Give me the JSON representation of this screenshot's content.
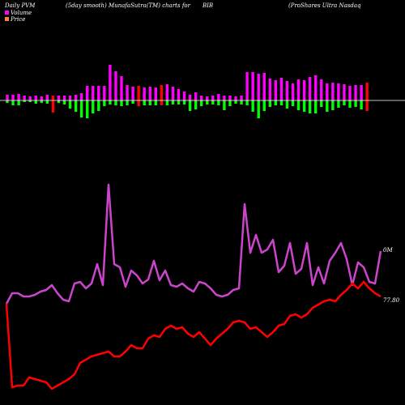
{
  "header": {
    "left": "Daily PVM",
    "center": "(5day smooth) MunafaSutra(TM) charts for",
    "symbol": "BIB",
    "right": "(ProShares Ultra  Nasdaq"
  },
  "legend": {
    "volume_label": "Volume",
    "price_label": "Price",
    "volume_color": "#ff00ff",
    "price_color": "#ff8040"
  },
  "colors": {
    "background": "#000000",
    "bar_magenta": "#ff00ff",
    "bar_green": "#00ff00",
    "bar_red": "#ff0000",
    "pvm_line": "#cc44cc",
    "price_line": "#ff0000",
    "baseline": "#ffffff"
  },
  "chart_data": {
    "type": "line",
    "x": [
      0,
      1,
      2,
      3,
      4,
      5,
      6,
      7,
      8,
      9,
      10,
      11,
      12,
      13,
      14,
      15,
      16,
      17,
      18,
      19,
      20,
      21,
      22,
      23,
      24,
      25,
      26,
      27,
      28,
      29,
      30,
      31,
      32,
      33,
      34,
      35,
      36,
      37,
      38,
      39,
      40,
      41,
      42,
      43,
      44,
      45,
      46,
      47,
      48,
      49,
      50,
      51,
      52,
      53,
      54,
      55,
      56,
      57,
      58,
      59,
      60,
      61,
      62,
      63,
      64,
      65,
      66
    ],
    "series": [
      {
        "values": [
          376,
          362,
          360,
          362,
          366,
          366,
          364,
          362,
          358,
          356,
          358,
          360,
          356,
          350,
          352,
          354,
          354,
          350,
          348,
          348,
          346,
          344,
          346,
          342,
          330,
          328,
          320,
          324,
          326,
          320,
          320,
          318,
          324,
          330,
          318,
          320,
          320,
          316,
          314,
          318,
          320,
          316,
          310,
          314,
          316,
          318,
          322,
          318,
          321,
          318,
          314,
          312,
          314,
          308,
          302,
          302,
          298,
          302,
          300,
          304,
          300,
          300,
          290,
          286,
          290,
          300,
          302
        ]
      },
      {
        "name": "Price",
        "values": [
          15,
          20,
          84,
          86,
          86,
          86,
          85,
          84,
          84,
          84,
          83,
          83,
          82,
          82,
          82,
          83,
          83,
          84,
          84,
          84,
          85,
          85,
          86,
          86,
          86,
          85,
          85,
          86,
          86,
          86,
          86,
          86,
          85,
          85,
          86,
          86,
          86,
          86,
          86,
          87,
          88,
          88,
          88,
          89,
          89,
          89,
          90,
          91,
          92,
          93,
          92,
          92,
          93,
          94,
          94,
          92,
          93,
          94,
          95,
          96,
          96,
          96,
          95,
          95,
          94,
          94,
          93
        ]
      }
    ],
    "right_labels": {
      "pvm": "0M",
      "price": "77.80"
    },
    "volume_bars": [
      {
        "up": 7,
        "down": 3,
        "c": "m"
      },
      {
        "up": 7,
        "down": 6,
        "c": "m"
      },
      {
        "up": 8,
        "down": 6,
        "c": "m"
      },
      {
        "up": 6,
        "down": 2,
        "c": "m"
      },
      {
        "up": 5,
        "down": 2,
        "c": "m"
      },
      {
        "up": 6,
        "down": 4,
        "c": "m"
      },
      {
        "up": 5,
        "down": 3,
        "c": "m"
      },
      {
        "up": 7,
        "down": 4,
        "c": "m"
      },
      {
        "up": 6,
        "down": 15,
        "c": "r"
      },
      {
        "up": 6,
        "down": 3,
        "c": "m"
      },
      {
        "up": 6,
        "down": 5,
        "c": "m"
      },
      {
        "up": 6,
        "down": 10,
        "c": "m"
      },
      {
        "up": 7,
        "down": 14,
        "c": "m"
      },
      {
        "up": 9,
        "down": 21,
        "c": "m"
      },
      {
        "up": 18,
        "down": 22,
        "c": "m"
      },
      {
        "up": 18,
        "down": 16,
        "c": "m"
      },
      {
        "up": 18,
        "down": 13,
        "c": "m"
      },
      {
        "up": 18,
        "down": 7,
        "c": "m"
      },
      {
        "up": 44,
        "down": 5,
        "c": "m"
      },
      {
        "up": 36,
        "down": 6,
        "c": "m"
      },
      {
        "up": 30,
        "down": 7,
        "c": "m"
      },
      {
        "up": 19,
        "down": 6,
        "c": "m"
      },
      {
        "up": 17,
        "down": 4,
        "c": "m"
      },
      {
        "up": 18,
        "down": 7,
        "c": "r"
      },
      {
        "up": 16,
        "down": 6,
        "c": "m"
      },
      {
        "up": 17,
        "down": 6,
        "c": "m"
      },
      {
        "up": 16,
        "down": 6,
        "c": "m"
      },
      {
        "up": 19,
        "down": 6,
        "c": "r"
      },
      {
        "up": 20,
        "down": 6,
        "c": "m"
      },
      {
        "up": 17,
        "down": 5,
        "c": "m"
      },
      {
        "up": 14,
        "down": 5,
        "c": "m"
      },
      {
        "up": 11,
        "down": 5,
        "c": "m"
      },
      {
        "up": 7,
        "down": 13,
        "c": "m"
      },
      {
        "up": 10,
        "down": 11,
        "c": "m"
      },
      {
        "up": 6,
        "down": 7,
        "c": "m"
      },
      {
        "up": 5,
        "down": 5,
        "c": "m"
      },
      {
        "up": 6,
        "down": 5,
        "c": "m"
      },
      {
        "up": 8,
        "down": 6,
        "c": "m"
      },
      {
        "up": 6,
        "down": 12,
        "c": "m"
      },
      {
        "up": 6,
        "down": 7,
        "c": "m"
      },
      {
        "up": 5,
        "down": 4,
        "c": "m"
      },
      {
        "up": 6,
        "down": 5,
        "c": "m"
      },
      {
        "up": 35,
        "down": 6,
        "c": "m"
      },
      {
        "up": 35,
        "down": 14,
        "c": "m"
      },
      {
        "up": 33,
        "down": 22,
        "c": "m"
      },
      {
        "up": 34,
        "down": 13,
        "c": "m"
      },
      {
        "up": 27,
        "down": 8,
        "c": "m"
      },
      {
        "up": 25,
        "down": 6,
        "c": "m"
      },
      {
        "up": 28,
        "down": 6,
        "c": "m"
      },
      {
        "up": 24,
        "down": 10,
        "c": "m"
      },
      {
        "up": 21,
        "down": 7,
        "c": "m"
      },
      {
        "up": 26,
        "down": 12,
        "c": "m"
      },
      {
        "up": 25,
        "down": 14,
        "c": "m"
      },
      {
        "up": 29,
        "down": 16,
        "c": "m"
      },
      {
        "up": 31,
        "down": 16,
        "c": "m"
      },
      {
        "up": 26,
        "down": 8,
        "c": "m"
      },
      {
        "up": 21,
        "down": 14,
        "c": "m"
      },
      {
        "up": 22,
        "down": 12,
        "c": "m"
      },
      {
        "up": 21,
        "down": 9,
        "c": "m"
      },
      {
        "up": 20,
        "down": 6,
        "c": "m"
      },
      {
        "up": 18,
        "down": 9,
        "c": "m"
      },
      {
        "up": 19,
        "down": 8,
        "c": "m"
      },
      {
        "up": 19,
        "down": 11,
        "c": "m"
      },
      {
        "up": 22,
        "down": 13,
        "c": "r"
      }
    ]
  }
}
